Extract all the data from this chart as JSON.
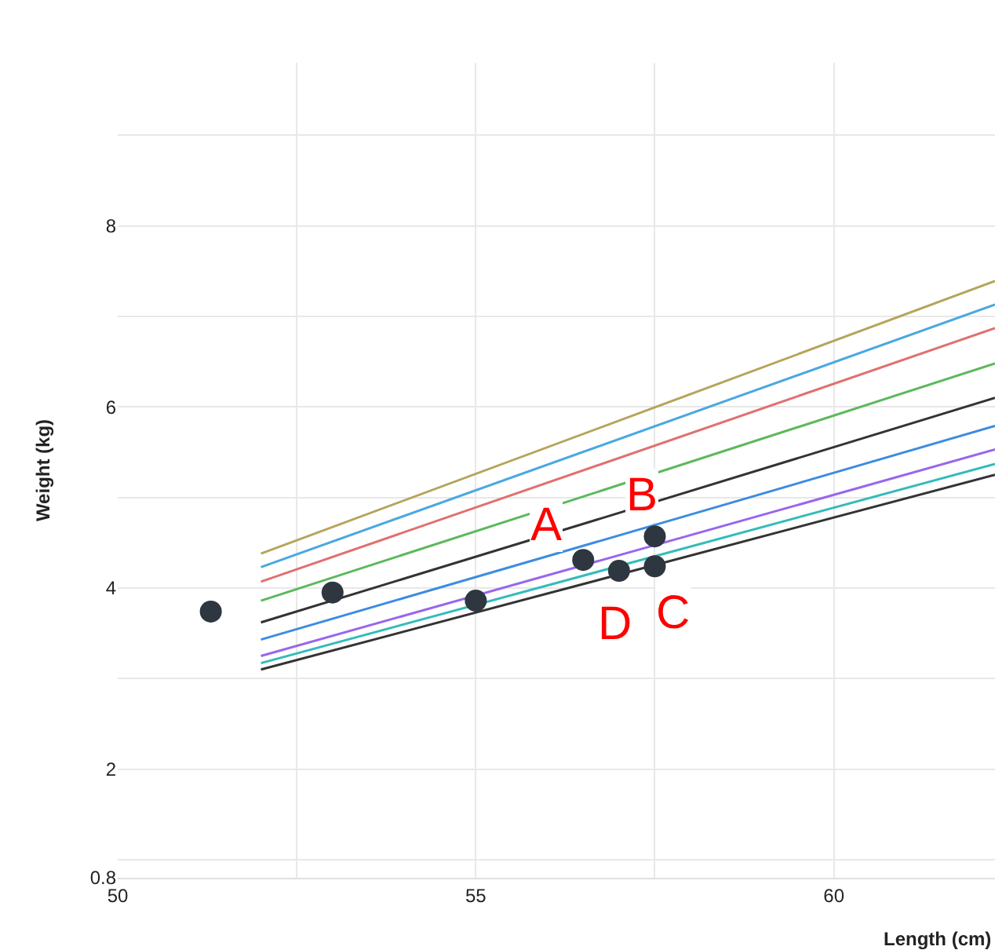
{
  "chart_data": {
    "type": "line",
    "xlabel": "Length (cm)",
    "ylabel": "Weight (kg)",
    "xlim": [
      50,
      62.25
    ],
    "ylim": [
      0.8,
      9.8
    ],
    "xticks": [
      50,
      {
        "value": 52.5,
        "label": null
      },
      55,
      {
        "value": 57.5,
        "label": null
      },
      60
    ],
    "yticks": [
      0.8,
      {
        "value": 1,
        "label": null
      },
      2,
      {
        "value": 3,
        "label": null
      },
      4,
      {
        "value": 5,
        "label": null
      },
      6,
      {
        "value": 7,
        "label": null
      },
      8,
      {
        "value": 9,
        "label": null
      }
    ],
    "grid": true,
    "marker": "none",
    "line_style": "solid",
    "series": [
      {
        "color": "#b5a55a",
        "x": [
          52,
          62.25
        ],
        "values": [
          4.38,
          7.39
        ]
      },
      {
        "color": "#4aa8e0",
        "x": [
          52,
          62.25
        ],
        "values": [
          4.23,
          7.13
        ]
      },
      {
        "color": "#e07070",
        "x": [
          52,
          62.25
        ],
        "values": [
          4.07,
          6.87
        ]
      },
      {
        "color": "#5cb85c",
        "x": [
          52,
          62.25
        ],
        "values": [
          3.86,
          6.48
        ]
      },
      {
        "color": "#333333",
        "x": [
          52,
          62.25
        ],
        "values": [
          3.62,
          6.1
        ]
      },
      {
        "color": "#3c8ce0",
        "x": [
          52,
          62.25
        ],
        "values": [
          3.43,
          5.79
        ]
      },
      {
        "color": "#9966ee",
        "x": [
          52,
          62.25
        ],
        "values": [
          3.25,
          5.53
        ]
      },
      {
        "color": "#33bbbb",
        "x": [
          52,
          62.25
        ],
        "values": [
          3.17,
          5.37
        ]
      },
      {
        "color": "#333333",
        "x": [
          52,
          62.25
        ],
        "values": [
          3.1,
          5.25
        ]
      },
      {
        "type": "scatter",
        "marker": "circle",
        "color": "#2e3640",
        "x": [
          51.3,
          53.0,
          55.0,
          56.5,
          57.0,
          57.5,
          57.5
        ],
        "values": [
          3.74,
          3.95,
          3.86,
          4.31,
          4.19,
          4.57,
          4.24
        ]
      }
    ],
    "annotations": [
      {
        "text": "A",
        "x": 56.5,
        "y": 4.31
      },
      {
        "text": "D",
        "x": 57.0,
        "y": 4.19
      },
      {
        "text": "B",
        "x": 57.5,
        "y": 4.57
      },
      {
        "text": "C",
        "x": 57.5,
        "y": 4.24
      }
    ]
  }
}
